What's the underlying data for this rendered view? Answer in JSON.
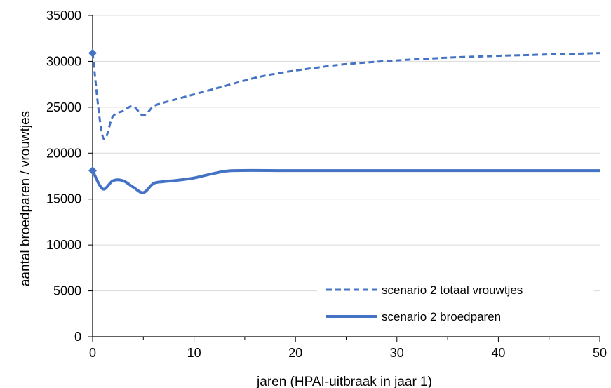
{
  "chart_data": {
    "type": "line",
    "title": "",
    "xlabel": "jaren (HPAI-uitbraak in jaar 1)",
    "ylabel": "aantal broedparen / vrouwtjes",
    "xlim": [
      0,
      50
    ],
    "ylim": [
      0,
      35000
    ],
    "xticks": [
      "0",
      "10",
      "20",
      "30",
      "40",
      "50"
    ],
    "yticks": [
      "0",
      "5000",
      "10000",
      "15000",
      "20000",
      "25000",
      "30000",
      "35000"
    ],
    "grid": "horizontal",
    "legend_position": "bottom-right",
    "series": [
      {
        "name": "scenario 2 totaal vrouwtjes",
        "style": "dashed",
        "color": "#4472C4",
        "x": [
          0,
          1,
          2,
          3,
          4,
          5,
          6,
          7,
          8,
          10,
          12,
          14,
          16,
          18,
          20,
          22,
          25,
          30,
          35,
          40,
          45,
          50
        ],
        "y": [
          30900,
          21800,
          24000,
          24600,
          25100,
          24100,
          25100,
          25500,
          25800,
          26400,
          27000,
          27600,
          28200,
          28650,
          29000,
          29300,
          29700,
          30100,
          30400,
          30600,
          30750,
          30900
        ]
      },
      {
        "name": "scenario 2 broedparen",
        "style": "solid",
        "color": "#4472C4",
        "x": [
          0,
          1,
          2,
          3,
          4,
          5,
          6,
          7,
          8,
          10,
          12,
          14,
          20,
          30,
          40,
          50
        ],
        "y": [
          18100,
          16100,
          17000,
          17000,
          16300,
          15700,
          16700,
          16900,
          17000,
          17300,
          17800,
          18100,
          18100,
          18100,
          18100,
          18100
        ]
      }
    ]
  }
}
